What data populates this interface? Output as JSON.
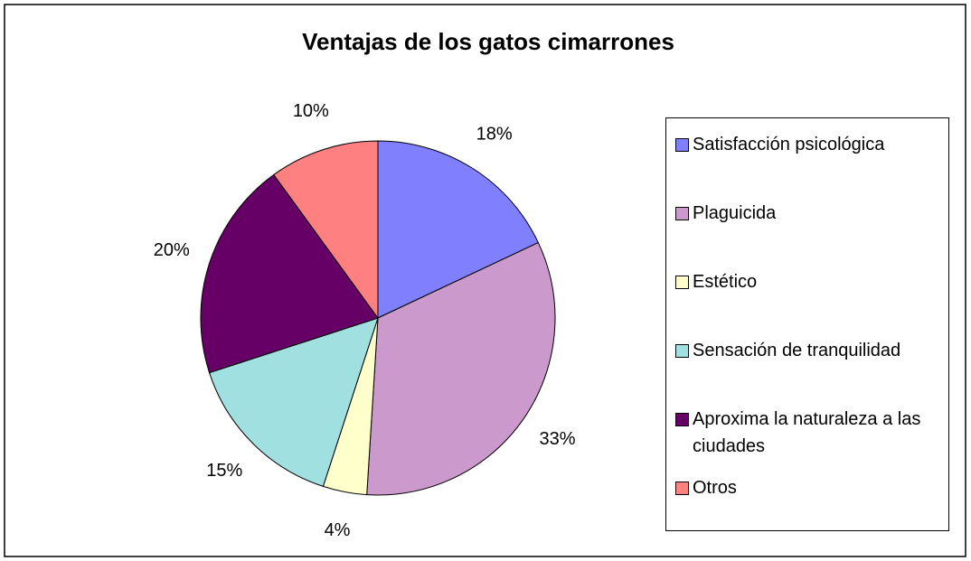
{
  "chart_data": {
    "type": "pie",
    "title": "Ventajas de los gatos cimarrones",
    "categories": [
      "Satisfacción psicológica",
      "Plaguicida",
      "Estético",
      "Sensación de tranquilidad",
      "Aproxima la naturaleza a las ciudades",
      "Otros"
    ],
    "values": [
      18,
      33,
      4,
      15,
      20,
      10
    ],
    "value_labels": [
      "18%",
      "33%",
      "4%",
      "15%",
      "20%",
      "10%"
    ],
    "colors": [
      "#8080ff",
      "#cc99cc",
      "#ffffcc",
      "#a0e0e0",
      "#660066",
      "#ff8080"
    ],
    "legend": "right"
  }
}
